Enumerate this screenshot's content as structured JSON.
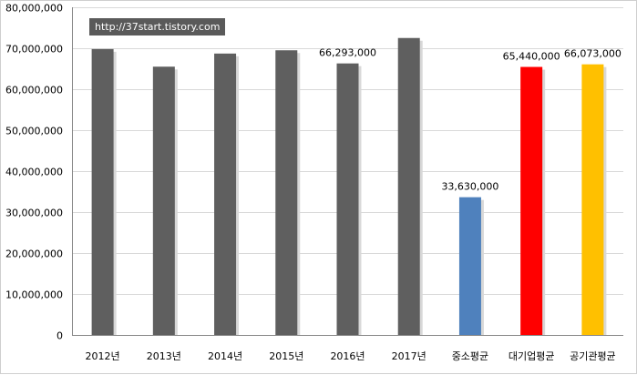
{
  "watermark": "http://37start.tistory.com",
  "chart_data": {
    "type": "bar",
    "title": "",
    "xlabel": "",
    "ylabel": "",
    "ylim": [
      0,
      80000000
    ],
    "yticks": [
      0,
      10000000,
      20000000,
      30000000,
      40000000,
      50000000,
      60000000,
      70000000,
      80000000
    ],
    "ytick_labels": [
      "0",
      "10,000,000",
      "20,000,000",
      "30,000,000",
      "40,000,000",
      "50,000,000",
      "60,000,000",
      "70,000,000",
      "80,000,000"
    ],
    "grid": true,
    "legend": false,
    "categories": [
      "2012년",
      "2013년",
      "2014년",
      "2015년",
      "2016년",
      "2017년",
      "중소평균",
      "대기업평균",
      "공기관평균"
    ],
    "values": [
      69800000,
      65500000,
      68700000,
      69500000,
      66293000,
      72500000,
      33630000,
      65440000,
      66073000
    ],
    "data_labels": [
      "",
      "",
      "",
      "",
      "66,293,000",
      "",
      "33,630,000",
      "65,440,000",
      "66,073,000"
    ],
    "colors": [
      "#5f5f5f",
      "#5f5f5f",
      "#5f5f5f",
      "#5f5f5f",
      "#5f5f5f",
      "#5f5f5f",
      "#4f81bd",
      "#ff0000",
      "#ffc000"
    ]
  }
}
